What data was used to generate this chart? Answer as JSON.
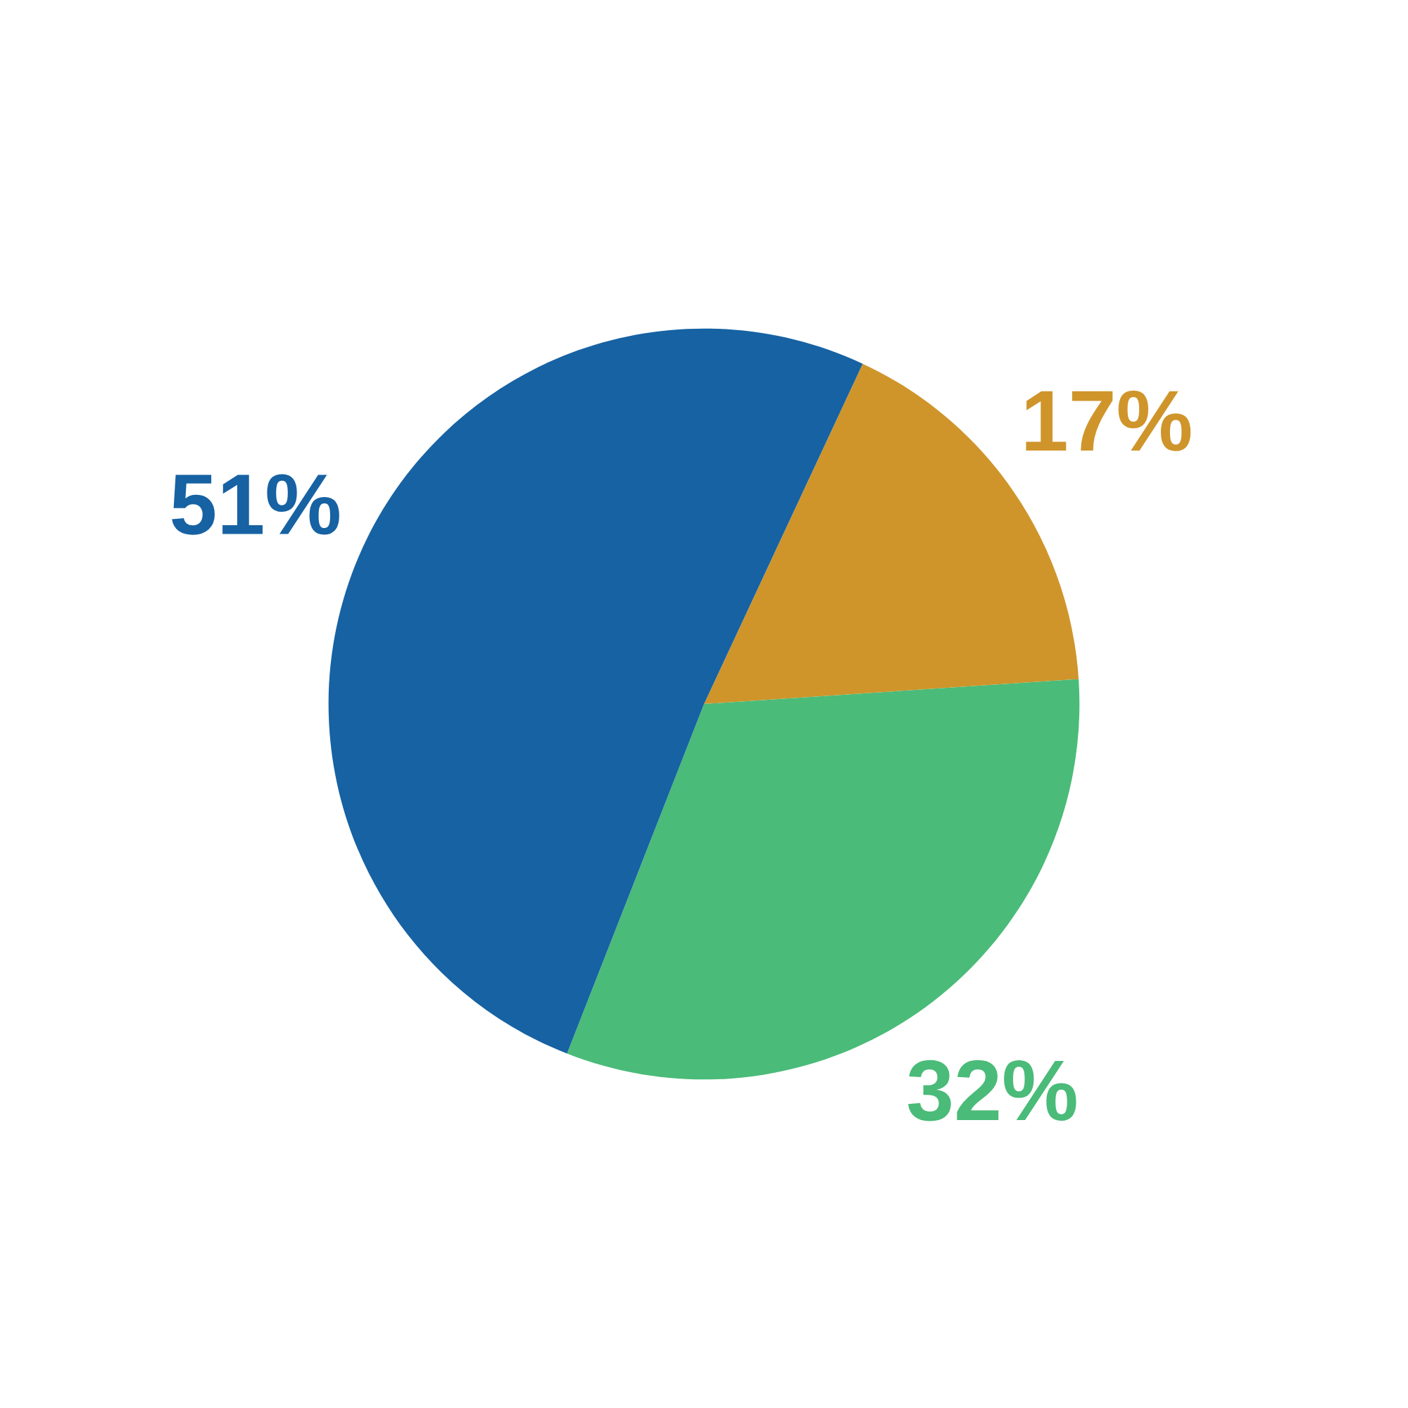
{
  "chart_data": {
    "type": "pie",
    "categories": [
      null,
      null,
      null
    ],
    "values": [
      17,
      32,
      51
    ],
    "colors": [
      "#cf952b",
      "#4abb78",
      "#1662a3"
    ],
    "value_labels": [
      "17%",
      "32%",
      "51%"
    ]
  }
}
